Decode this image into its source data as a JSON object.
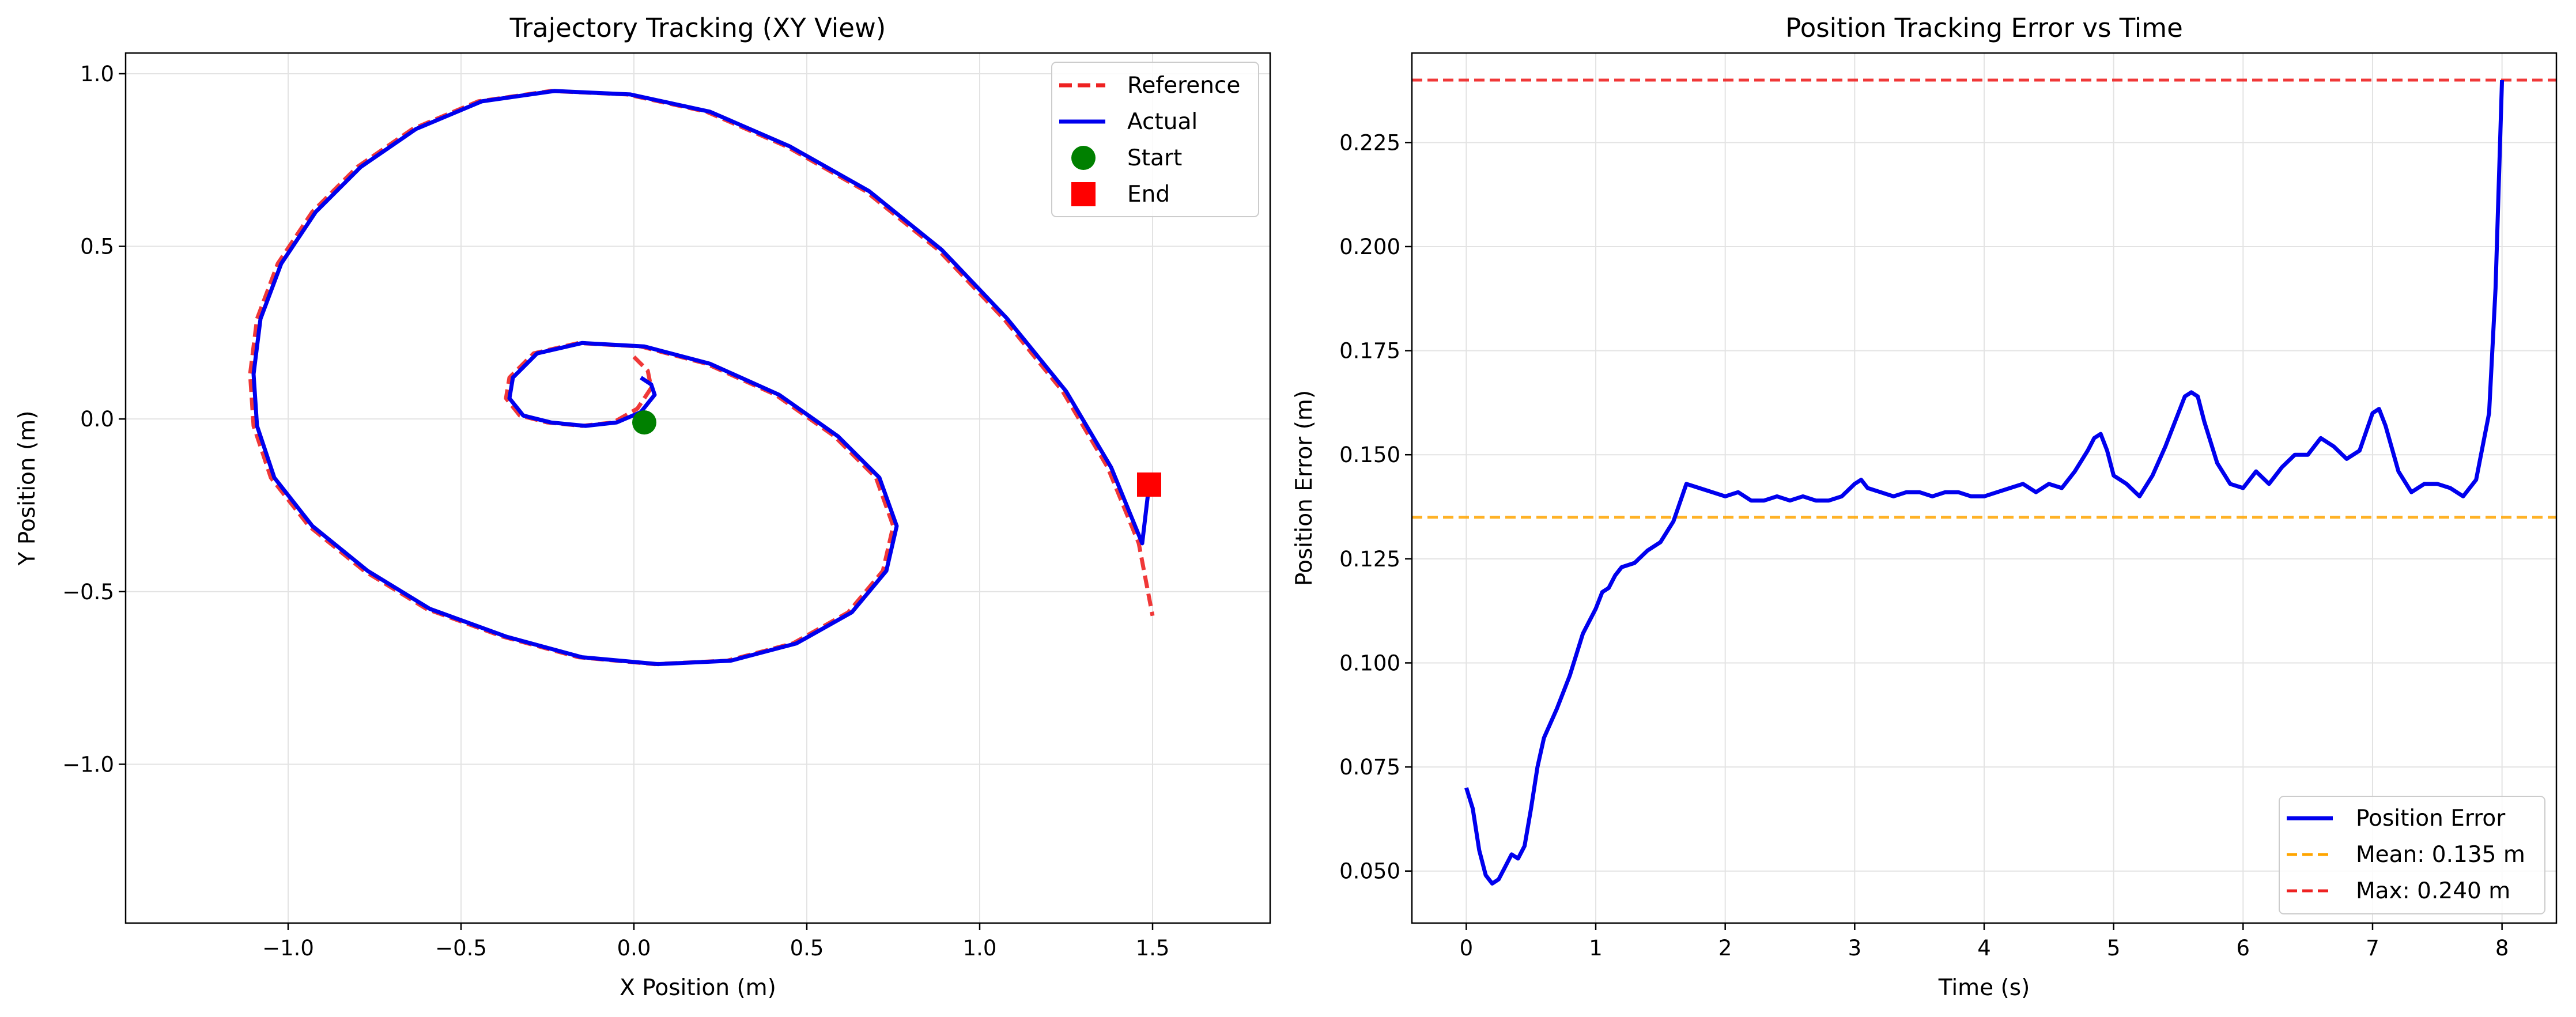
{
  "colors": {
    "reference": "#ee2222",
    "actual": "#0000ee",
    "start": "#008000",
    "end": "#ff0000",
    "mean_line": "#ffa500",
    "max_line": "#ee2222",
    "grid": "#e3e3e3"
  },
  "chart_data": [
    {
      "type": "line",
      "title": "Trajectory Tracking (XY View)",
      "xlabel": "X Position (m)",
      "ylabel": "Y Position (m)",
      "xlim": [
        -1.47,
        1.84
      ],
      "ylim": [
        -1.46,
        1.06
      ],
      "xticks": [
        -1.0,
        -0.5,
        0.0,
        0.5,
        1.0,
        1.5
      ],
      "xtick_labels": [
        "−1.0",
        "−0.5",
        "0.0",
        "0.5",
        "1.0",
        "1.5"
      ],
      "yticks": [
        1.0,
        0.5,
        0.0,
        -0.5,
        -1.0
      ],
      "ytick_labels": [
        "1.0",
        "0.5",
        "0.0",
        "−0.5",
        "−1.0"
      ],
      "grid": true,
      "legend_position": "top-right",
      "legend": [
        "Reference",
        "Actual",
        "Start",
        "End"
      ],
      "series": [
        {
          "name": "Reference",
          "style": "dashed",
          "x": [
            0.0,
            0.04,
            0.05,
            0.01,
            -0.06,
            -0.15,
            -0.25,
            -0.33,
            -0.37,
            -0.36,
            -0.29,
            -0.16,
            0.02,
            0.21,
            0.41,
            0.58,
            0.7,
            0.75,
            0.72,
            0.62,
            0.46,
            0.27,
            0.06,
            -0.16,
            -0.38,
            -0.6,
            -0.78,
            -0.94,
            -1.05,
            -1.1,
            -1.11,
            -1.09,
            -1.03,
            -0.93,
            -0.8,
            -0.64,
            -0.45,
            -0.24,
            -0.02,
            0.21,
            0.44,
            0.67,
            0.88,
            1.07,
            1.24,
            1.37,
            1.46,
            1.5
          ],
          "y": [
            0.18,
            0.14,
            0.09,
            0.03,
            -0.01,
            -0.02,
            -0.01,
            0.01,
            0.06,
            0.12,
            0.19,
            0.22,
            0.21,
            0.16,
            0.07,
            -0.05,
            -0.17,
            -0.31,
            -0.44,
            -0.56,
            -0.65,
            -0.7,
            -0.71,
            -0.69,
            -0.63,
            -0.55,
            -0.44,
            -0.31,
            -0.17,
            -0.02,
            0.13,
            0.29,
            0.45,
            0.6,
            0.73,
            0.84,
            0.92,
            0.95,
            0.94,
            0.89,
            0.79,
            0.66,
            0.49,
            0.29,
            0.08,
            -0.14,
            -0.36,
            -0.57
          ]
        },
        {
          "name": "Actual",
          "style": "solid",
          "x": [
            0.02,
            0.05,
            0.06,
            0.02,
            -0.05,
            -0.14,
            -0.24,
            -0.32,
            -0.36,
            -0.35,
            -0.28,
            -0.15,
            0.03,
            0.22,
            0.42,
            0.59,
            0.71,
            0.76,
            0.73,
            0.63,
            0.47,
            0.28,
            0.07,
            -0.15,
            -0.37,
            -0.59,
            -0.77,
            -0.93,
            -1.04,
            -1.09,
            -1.1,
            -1.08,
            -1.02,
            -0.92,
            -0.79,
            -0.63,
            -0.44,
            -0.23,
            -0.01,
            0.22,
            0.45,
            0.68,
            0.89,
            1.08,
            1.25,
            1.38,
            1.47,
            1.49
          ],
          "y": [
            0.12,
            0.1,
            0.07,
            0.02,
            -0.01,
            -0.02,
            -0.01,
            0.01,
            0.06,
            0.12,
            0.19,
            0.22,
            0.21,
            0.16,
            0.07,
            -0.05,
            -0.17,
            -0.31,
            -0.44,
            -0.56,
            -0.65,
            -0.7,
            -0.71,
            -0.69,
            -0.63,
            -0.55,
            -0.44,
            -0.31,
            -0.17,
            -0.02,
            0.13,
            0.29,
            0.45,
            0.6,
            0.73,
            0.84,
            0.92,
            0.95,
            0.94,
            0.89,
            0.79,
            0.66,
            0.49,
            0.29,
            0.08,
            -0.14,
            -0.36,
            -0.19
          ]
        },
        {
          "name": "Start",
          "style": "marker-circle",
          "x": [
            0.03
          ],
          "y": [
            -0.01
          ]
        },
        {
          "name": "End",
          "style": "marker-square",
          "x": [
            1.49
          ],
          "y": [
            -0.19
          ]
        }
      ]
    },
    {
      "type": "line",
      "title": "Position Tracking Error vs Time",
      "xlabel": "Time (s)",
      "ylabel": "Position Error (m)",
      "xlim": [
        -0.42,
        8.42
      ],
      "ylim": [
        0.0375,
        0.2465
      ],
      "xticks": [
        0,
        1,
        2,
        3,
        4,
        5,
        6,
        7,
        8
      ],
      "xtick_labels": [
        "0",
        "1",
        "2",
        "3",
        "4",
        "5",
        "6",
        "7",
        "8"
      ],
      "yticks": [
        0.225,
        0.2,
        0.175,
        0.15,
        0.125,
        0.1,
        0.075,
        0.05
      ],
      "ytick_labels": [
        "0.225",
        "0.200",
        "0.175",
        "0.150",
        "0.125",
        "0.100",
        "0.075",
        "0.050"
      ],
      "grid": true,
      "legend_position": "bottom-right",
      "legend": [
        "Position Error",
        "Mean: 0.135 m",
        "Max: 0.240 m"
      ],
      "series": [
        {
          "name": "Position Error",
          "style": "solid",
          "x": [
            0.0,
            0.05,
            0.1,
            0.15,
            0.2,
            0.25,
            0.3,
            0.35,
            0.4,
            0.45,
            0.5,
            0.55,
            0.6,
            0.7,
            0.8,
            0.9,
            1.0,
            1.05,
            1.1,
            1.15,
            1.2,
            1.3,
            1.4,
            1.5,
            1.6,
            1.7,
            1.8,
            1.9,
            2.0,
            2.1,
            2.2,
            2.3,
            2.4,
            2.5,
            2.6,
            2.7,
            2.8,
            2.9,
            3.0,
            3.05,
            3.1,
            3.2,
            3.3,
            3.4,
            3.5,
            3.6,
            3.7,
            3.8,
            3.9,
            4.0,
            4.1,
            4.2,
            4.3,
            4.4,
            4.5,
            4.6,
            4.7,
            4.8,
            4.85,
            4.9,
            4.95,
            5.0,
            5.1,
            5.2,
            5.3,
            5.4,
            5.5,
            5.55,
            5.6,
            5.65,
            5.7,
            5.8,
            5.9,
            6.0,
            6.1,
            6.2,
            6.3,
            6.4,
            6.5,
            6.6,
            6.7,
            6.8,
            6.9,
            7.0,
            7.05,
            7.1,
            7.2,
            7.3,
            7.4,
            7.5,
            7.6,
            7.7,
            7.8,
            7.9,
            7.95,
            8.0
          ],
          "y": [
            0.07,
            0.065,
            0.055,
            0.049,
            0.047,
            0.048,
            0.051,
            0.054,
            0.053,
            0.056,
            0.065,
            0.075,
            0.082,
            0.089,
            0.097,
            0.107,
            0.113,
            0.117,
            0.118,
            0.121,
            0.123,
            0.124,
            0.127,
            0.129,
            0.134,
            0.143,
            0.142,
            0.141,
            0.14,
            0.141,
            0.139,
            0.139,
            0.14,
            0.139,
            0.14,
            0.139,
            0.139,
            0.14,
            0.143,
            0.144,
            0.142,
            0.141,
            0.14,
            0.141,
            0.141,
            0.14,
            0.141,
            0.141,
            0.14,
            0.14,
            0.141,
            0.142,
            0.143,
            0.141,
            0.143,
            0.142,
            0.146,
            0.151,
            0.154,
            0.155,
            0.151,
            0.145,
            0.143,
            0.14,
            0.145,
            0.152,
            0.16,
            0.164,
            0.165,
            0.164,
            0.158,
            0.148,
            0.143,
            0.142,
            0.146,
            0.143,
            0.147,
            0.15,
            0.15,
            0.154,
            0.152,
            0.149,
            0.151,
            0.16,
            0.161,
            0.157,
            0.146,
            0.141,
            0.143,
            0.143,
            0.142,
            0.14,
            0.144,
            0.16,
            0.19,
            0.24
          ]
        },
        {
          "name": "Mean: 0.135 m",
          "style": "dashed-horizontal",
          "value": 0.135
        },
        {
          "name": "Max: 0.240 m",
          "style": "dashed-horizontal",
          "value": 0.24
        }
      ]
    }
  ]
}
